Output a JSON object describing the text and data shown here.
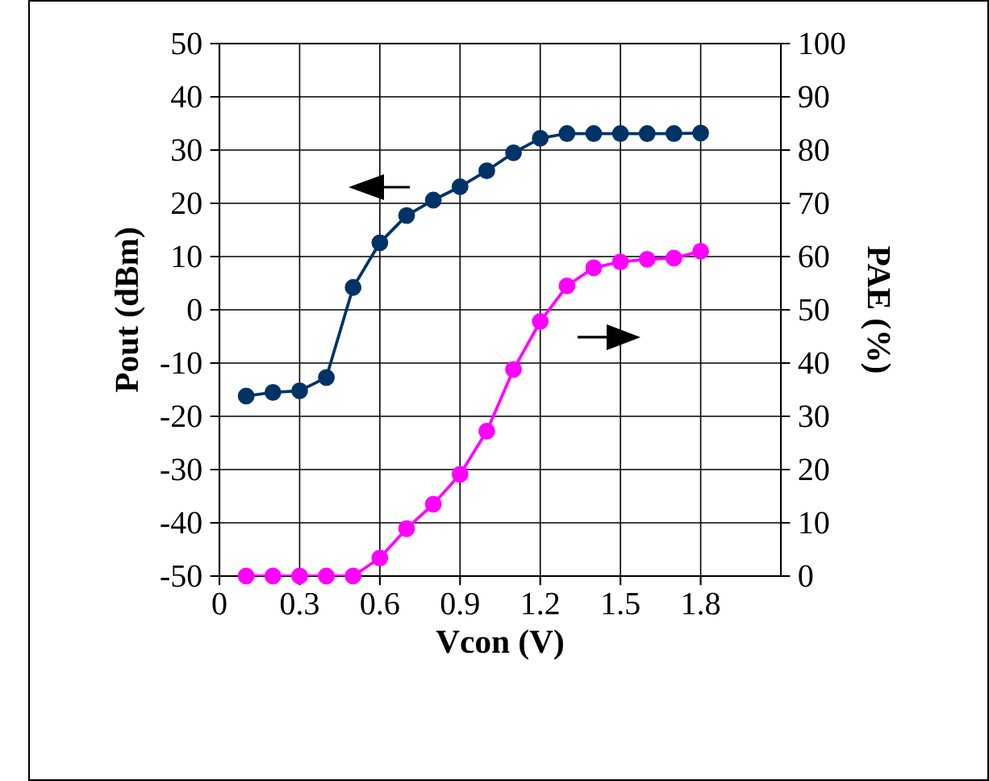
{
  "chart_data": {
    "type": "line",
    "xlabel": "Vcon (V)",
    "ylabel": "Pout (dBm)",
    "y2label": "PAE (%)",
    "x": [
      0.1,
      0.2,
      0.3,
      0.4,
      0.5,
      0.6,
      0.7,
      0.8,
      0.9,
      1.0,
      1.1,
      1.2,
      1.3,
      1.4,
      1.5,
      1.6,
      1.7,
      1.8
    ],
    "series": [
      {
        "color": "#003366",
        "values": [
          -16.2,
          -15.5,
          -15.2,
          -12.7,
          4.2,
          12.6,
          17.7,
          20.6,
          23.1,
          26.1,
          29.5,
          32.2,
          33.1,
          33.1,
          33.1,
          33.1,
          33.1,
          33.2
        ]
      },
      {
        "color": "#ff00ff",
        "axis": "y2",
        "values": [
          0,
          0,
          0,
          0,
          0,
          3.4,
          8.9,
          13.5,
          19.1,
          27.2,
          38.8,
          47.8,
          54.5,
          57.9,
          59.0,
          59.5,
          59.7,
          61.0
        ]
      }
    ],
    "xlim": [
      0,
      2.1
    ],
    "xticks": [
      0,
      0.3,
      0.6,
      0.9,
      1.2,
      1.5,
      1.8
    ],
    "ylim": [
      -50,
      50
    ],
    "yticks": [
      -50,
      -40,
      -30,
      -20,
      -10,
      0,
      10,
      20,
      30,
      40,
      50
    ],
    "y2lim": [
      0,
      100
    ],
    "y2ticks": [
      0,
      10,
      20,
      30,
      40,
      50,
      60,
      70,
      80,
      90,
      100
    ],
    "grid": true,
    "marker": "circle",
    "line_style": "solid",
    "legend": false
  }
}
